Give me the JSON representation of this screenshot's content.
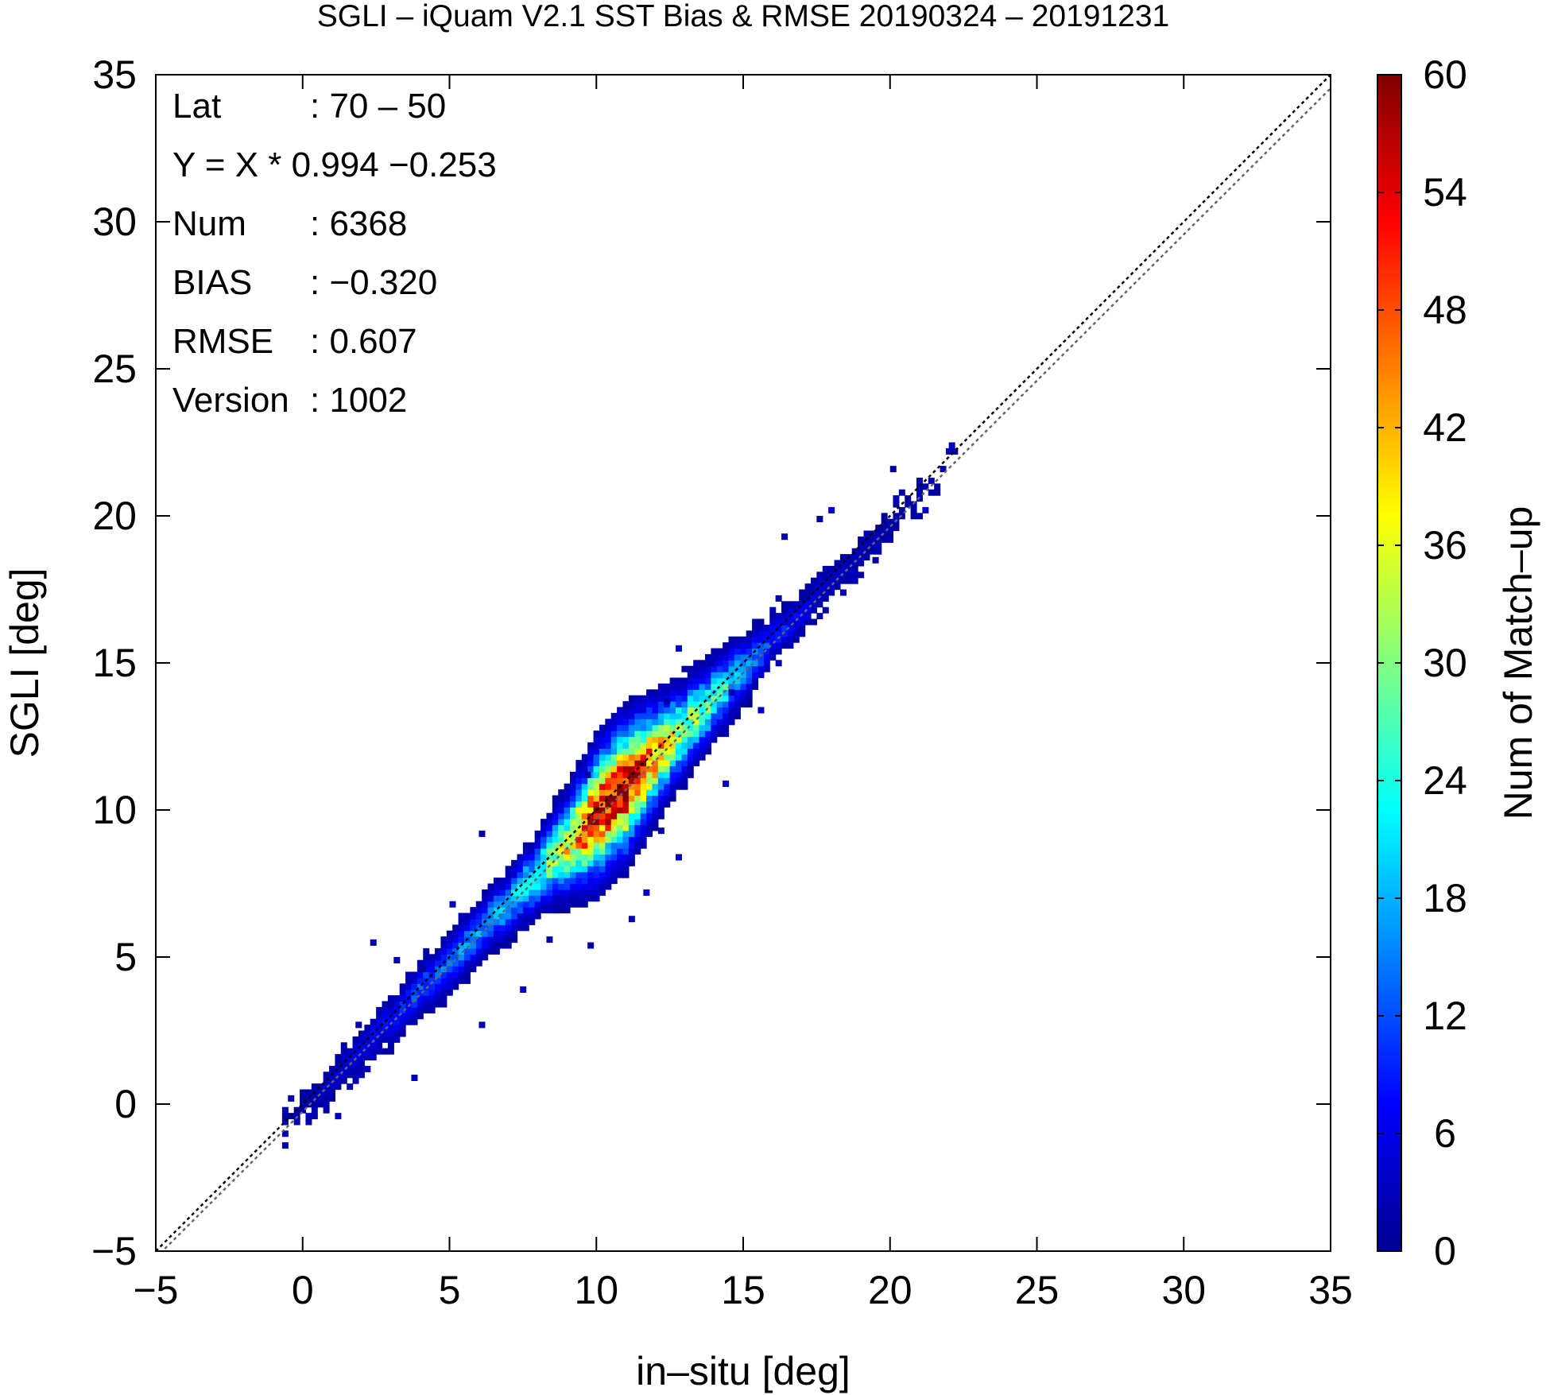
{
  "chart_data": {
    "type": "heatmap",
    "title": "SGLI – iQuam V2.1 SST Bias & RMSE 20190324 – 20191231",
    "xlabel": "in–situ [deg]",
    "ylabel": "SGLI [deg]",
    "xlim": [
      -5,
      35
    ],
    "ylim": [
      -5,
      35
    ],
    "x_ticks": [
      "−5",
      "0",
      "5",
      "10",
      "15",
      "20",
      "25",
      "30",
      "35"
    ],
    "y_ticks": [
      "−5",
      "0",
      "5",
      "10",
      "15",
      "20",
      "25",
      "30",
      "35"
    ],
    "colorbar": {
      "label": "Num of Match–up",
      "range": [
        0,
        60
      ],
      "ticks": [
        "0",
        "6",
        "12",
        "18",
        "24",
        "30",
        "36",
        "42",
        "48",
        "54",
        "60"
      ],
      "colormap": [
        "#00008f",
        "#0000ff",
        "#0080ff",
        "#00ffff",
        "#80ff80",
        "#ffff00",
        "#ff8000",
        "#ff0000",
        "#800000"
      ]
    },
    "stats": [
      {
        "key": "Lat",
        "value": ": 70 – 50"
      },
      {
        "key": "Y = X * 0.994 −0.253",
        "value": ""
      },
      {
        "key": "Num",
        "value": ": 6368"
      },
      {
        "key": "BIAS",
        "value": ": −0.320"
      },
      {
        "key": "RMSE",
        "value": ": 0.607"
      },
      {
        "key": "Version",
        "value": ": 1002"
      }
    ],
    "reference_lines": [
      {
        "slope": 1,
        "intercept": 0,
        "color": "#000000",
        "style": "dotted"
      },
      {
        "slope": 0.994,
        "intercept": -0.253,
        "color": "#666666",
        "style": "dotted"
      }
    ],
    "bin_size": 0.2,
    "density_profile": {
      "x": [
        -0.6,
        0,
        1,
        2,
        3,
        4,
        5,
        6,
        7,
        8,
        9,
        10,
        11,
        12,
        13,
        14,
        15,
        16,
        17,
        18,
        19,
        20,
        21,
        22.2
      ],
      "count": [
        1,
        2,
        4,
        6,
        8,
        12,
        14,
        16,
        18,
        24,
        38,
        56,
        58,
        44,
        32,
        26,
        18,
        10,
        6,
        4,
        3,
        2,
        1,
        1
      ]
    },
    "outliers": [
      [
        -0.6,
        -0.4
      ],
      [
        1.2,
        -0.4
      ],
      [
        2.4,
        5.5
      ],
      [
        3.2,
        4.9
      ],
      [
        4.1,
        4.6
      ],
      [
        5.1,
        6.8
      ],
      [
        6.1,
        9.2
      ],
      [
        8.4,
        5.6
      ],
      [
        8.6,
        6.6
      ],
      [
        9.8,
        5.4
      ],
      [
        11.2,
        6.3
      ],
      [
        12.2,
        9.3
      ],
      [
        12.8,
        8.4
      ],
      [
        14.4,
        10.9
      ],
      [
        9.7,
        11.2
      ],
      [
        12.4,
        13.7
      ],
      [
        13.0,
        14.8
      ],
      [
        13.9,
        15.0
      ],
      [
        16.2,
        17.2
      ],
      [
        15.6,
        13.4
      ],
      [
        17.6,
        19.9
      ],
      [
        18.0,
        20.2
      ],
      [
        16.4,
        19.3
      ],
      [
        18.7,
        18.1
      ],
      [
        19.5,
        18.5
      ],
      [
        20.1,
        21.6
      ],
      [
        22.1,
        22.4
      ],
      [
        1.9,
        2.7
      ],
      [
        3.8,
        0.9
      ],
      [
        6.1,
        2.7
      ],
      [
        7.5,
        3.9
      ],
      [
        11.7,
        7.2
      ],
      [
        12.8,
        15.5
      ],
      [
        14.6,
        14.0
      ]
    ]
  }
}
